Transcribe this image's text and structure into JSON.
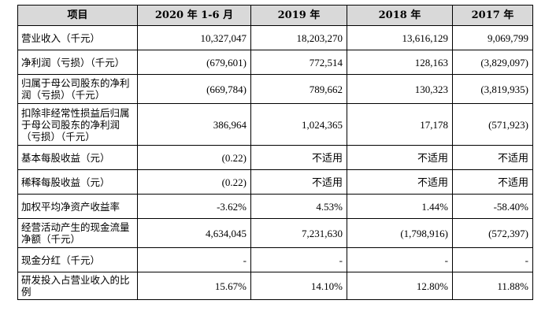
{
  "table": {
    "headers": [
      "项目",
      "2020 年 1-6 月",
      "2019 年",
      "2018 年",
      "2017 年"
    ],
    "rows": [
      {
        "label": "营业收入（千元）",
        "values": [
          "10,327,047",
          "18,203,270",
          "13,616,129",
          "9,069,799"
        ]
      },
      {
        "label": "净利润（亏损）（千元）",
        "values": [
          "(679,601)",
          "772,514",
          "128,163",
          "(3,829,097)"
        ]
      },
      {
        "label": "归属于母公司股东的净利润（亏损）（千元）",
        "values": [
          "(669,784)",
          "789,662",
          "130,323",
          "(3,819,935)"
        ]
      },
      {
        "label": "扣除非经常性损益后归属于母公司股东的净利润（亏损）（千元）",
        "values": [
          "386,964",
          "1,024,365",
          "17,178",
          "(571,923)"
        ]
      },
      {
        "label": "基本每股收益（元）",
        "values": [
          "(0.22)",
          "不适用",
          "不适用",
          "不适用"
        ]
      },
      {
        "label": "稀释每股收益（元）",
        "values": [
          "(0.22)",
          "不适用",
          "不适用",
          "不适用"
        ]
      },
      {
        "label": "加权平均净资产收益率",
        "values": [
          "-3.62%",
          "4.53%",
          "1.44%",
          "-58.40%"
        ]
      },
      {
        "label": "经营活动产生的现金流量净额（千元）",
        "values": [
          "4,634,045",
          "7,231,630",
          "(1,798,916)",
          "(572,397)"
        ]
      },
      {
        "label": "现金分红（千元）",
        "values": [
          "-",
          "-",
          "-",
          "-"
        ]
      },
      {
        "label": "研发投入占营业收入的比例",
        "values": [
          "15.67%",
          "14.10%",
          "12.80%",
          "11.88%"
        ]
      }
    ]
  }
}
